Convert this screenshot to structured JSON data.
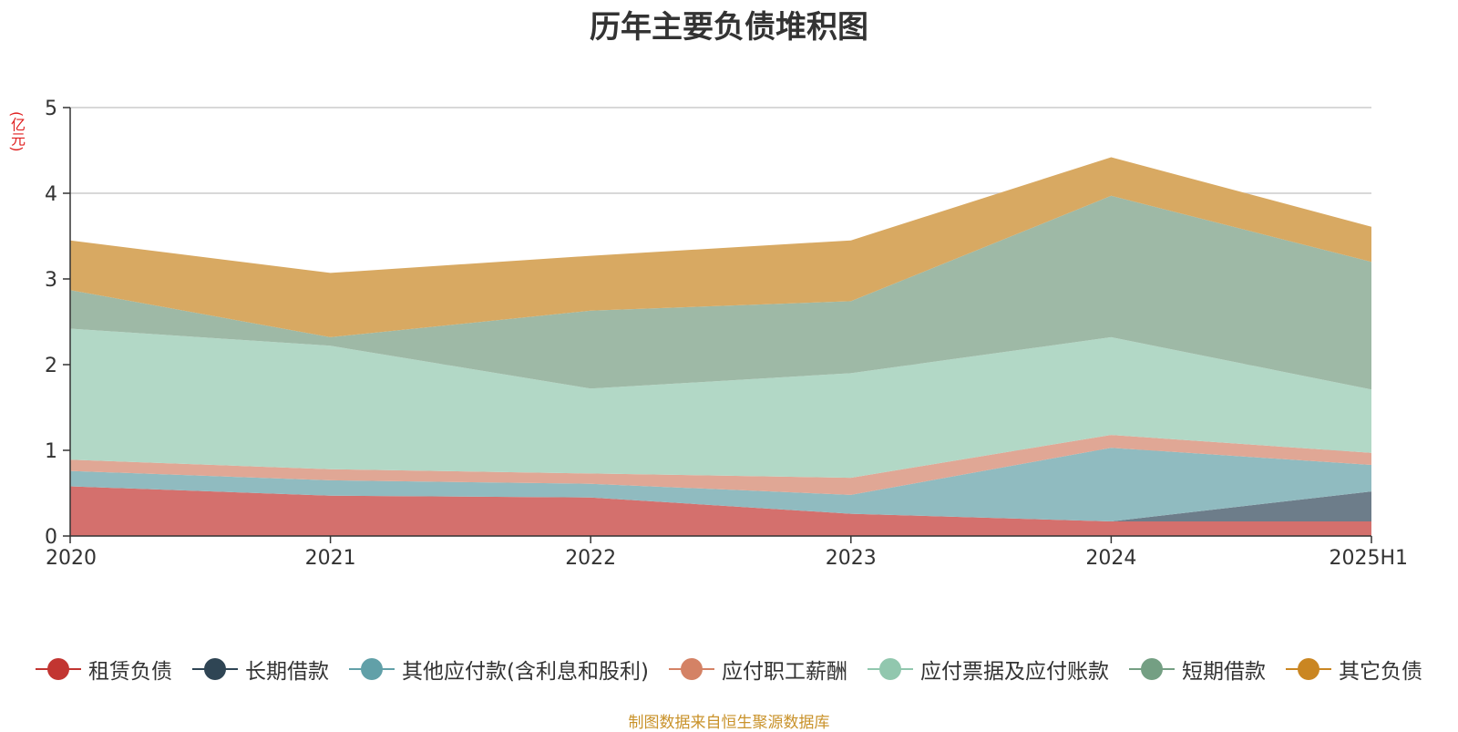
{
  "chart_data": {
    "type": "area",
    "stacked": true,
    "title": "历年主要负债堆积图",
    "ylabel": "(亿元)",
    "ylim": [
      0,
      5
    ],
    "y_ticks": [
      "0",
      "1",
      "2",
      "3",
      "4",
      "5"
    ],
    "categories": [
      "2020",
      "2021",
      "2022",
      "2023",
      "2024",
      "2025H1"
    ],
    "grid": true,
    "legend_position": "bottom",
    "series": [
      {
        "name": "租赁负债",
        "color": "#c23531",
        "fill": "#d4706d",
        "values": [
          0.58,
          0.47,
          0.45,
          0.26,
          0.17,
          0.17
        ]
      },
      {
        "name": "长期借款",
        "color": "#2f4554",
        "fill": "#6d7d8a",
        "values": [
          0.0,
          0.0,
          0.0,
          0.0,
          0.0,
          0.35
        ]
      },
      {
        "name": "其他应付款(含利息和股利)",
        "color": "#61a0a8",
        "fill": "#90bbc0",
        "values": [
          0.18,
          0.18,
          0.16,
          0.22,
          0.86,
          0.31
        ]
      },
      {
        "name": "应付职工薪酬",
        "color": "#d48265",
        "fill": "#e0a795",
        "values": [
          0.13,
          0.13,
          0.12,
          0.2,
          0.15,
          0.14
        ]
      },
      {
        "name": "应付票据及应付账款",
        "color": "#91c7ae",
        "fill": "#b2d8c6",
        "values": [
          1.53,
          1.44,
          0.99,
          1.22,
          1.14,
          0.74
        ]
      },
      {
        "name": "短期借款",
        "color": "#749f83",
        "fill": "#9eb9a6",
        "values": [
          0.45,
          0.1,
          0.91,
          0.84,
          1.65,
          1.49
        ]
      },
      {
        "name": "其它负债",
        "color": "#ca8622",
        "fill": "#d8a962",
        "values": [
          0.58,
          0.75,
          0.64,
          0.71,
          0.45,
          0.41
        ]
      }
    ]
  },
  "source_note": "制图数据来自恒生聚源数据库"
}
